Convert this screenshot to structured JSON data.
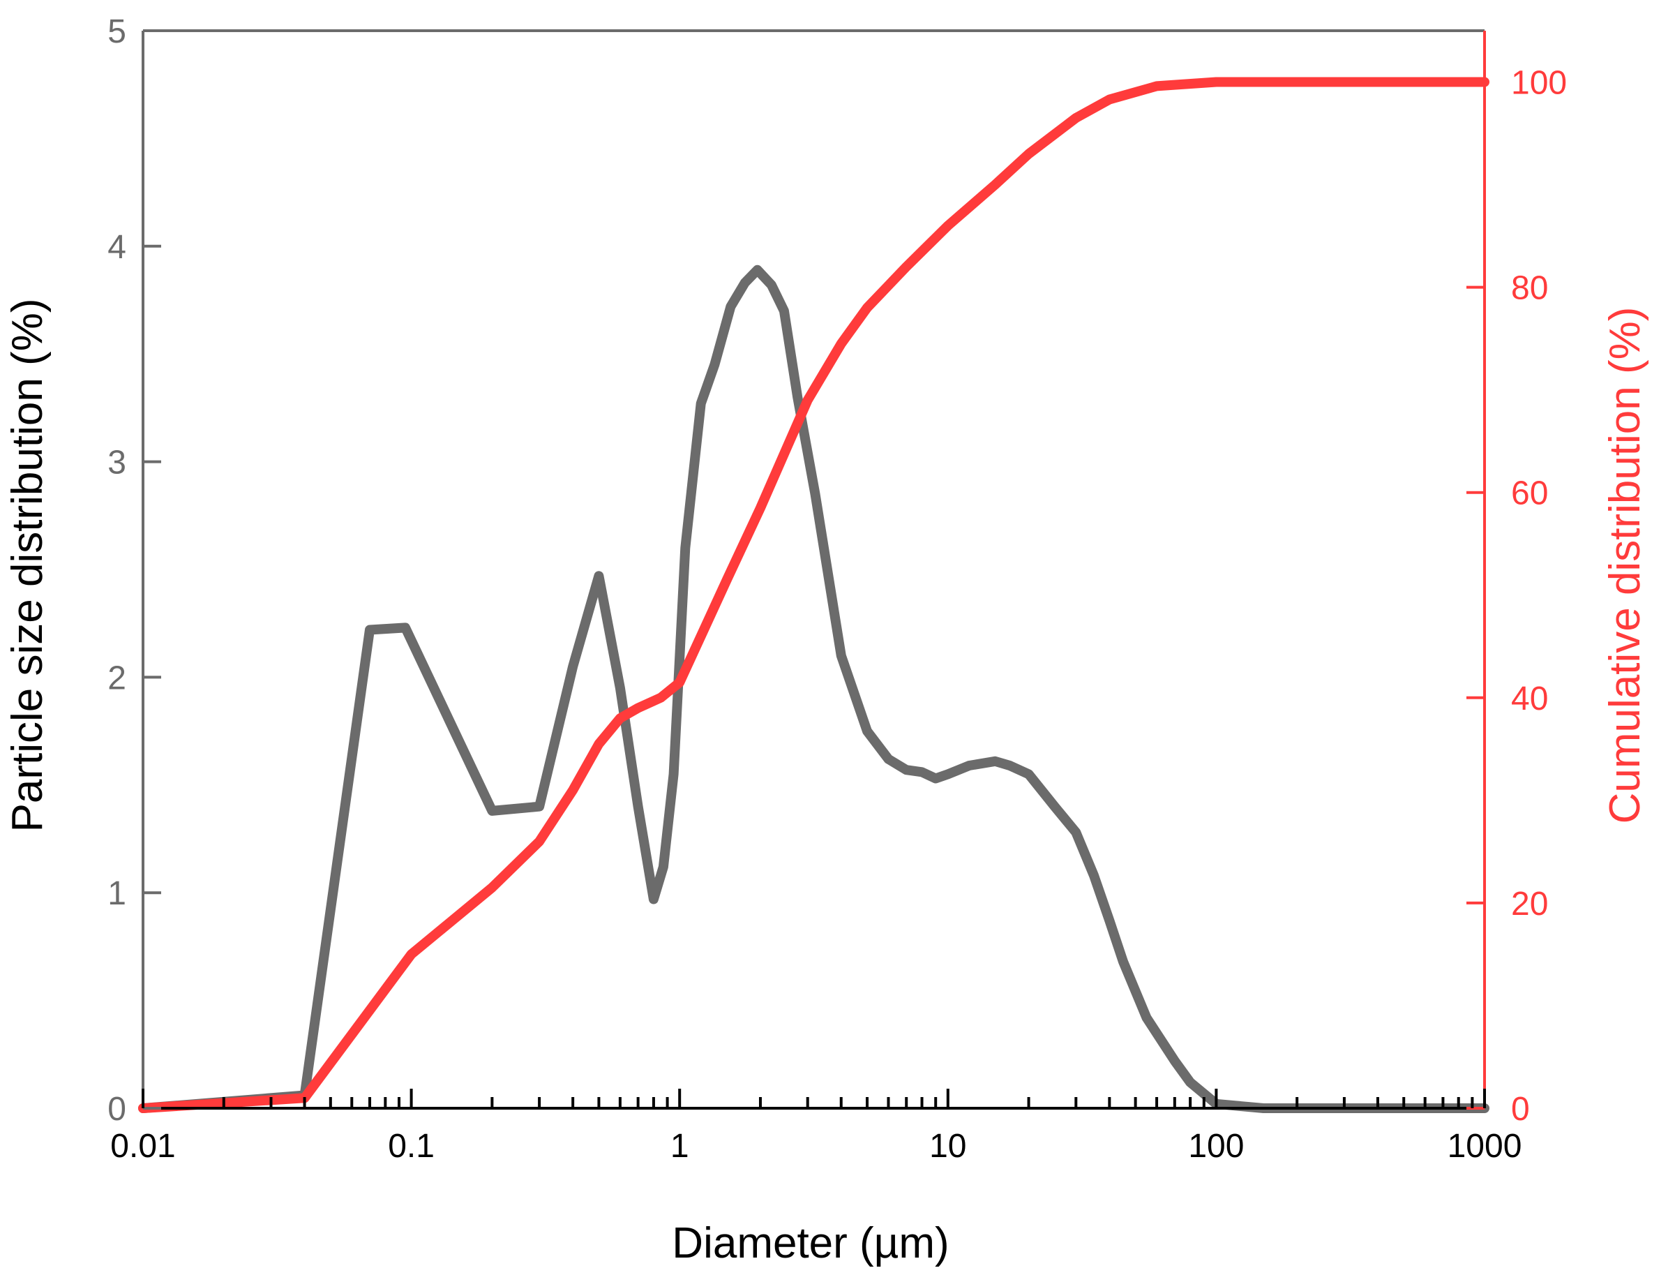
{
  "chart_data": {
    "type": "line",
    "x_scale": "log",
    "xlabel": "Diameter (µm)",
    "ylabel_left": "Particle size distribution (%)",
    "ylabel_right": "Cumulative distribution (%)",
    "xlim": [
      0.01,
      1000
    ],
    "ylim_left": [
      0,
      5
    ],
    "ylim_right": [
      0,
      105
    ],
    "x_ticks": [
      0.01,
      0.1,
      1,
      10,
      100,
      1000
    ],
    "x_tick_labels": [
      "0.01",
      "0.1",
      "1",
      "10",
      "100",
      "1000"
    ],
    "y_left_ticks": [
      0,
      1,
      2,
      3,
      4,
      5
    ],
    "y_left_tick_labels": [
      "0",
      "1",
      "2",
      "3",
      "4",
      "5"
    ],
    "y_right_ticks": [
      0,
      20,
      40,
      60,
      80,
      100
    ],
    "y_right_tick_labels": [
      "0",
      "20",
      "40",
      "60",
      "80",
      "100"
    ],
    "grid": false,
    "colors": {
      "left_axis": "#6b6b6b",
      "right_axis": "#ff3b3b",
      "x_axis": "#000000",
      "distribution_line": "#6b6b6b",
      "cumulative_line": "#ff3b3b"
    },
    "series": [
      {
        "axis": "left",
        "x": [
          0.01,
          0.04,
          0.07,
          0.095,
          0.2,
          0.3,
          0.4,
          0.5,
          0.6,
          0.7,
          0.8,
          0.87,
          0.95,
          1.05,
          1.2,
          1.35,
          1.55,
          1.75,
          1.95,
          2.2,
          2.45,
          2.75,
          3.2,
          4,
          5,
          6,
          7,
          8,
          9,
          10,
          12,
          15,
          17,
          20,
          25,
          30,
          35,
          40,
          45,
          55,
          70,
          80,
          100,
          150,
          1000
        ],
        "y": [
          0.0,
          0.06,
          2.22,
          2.23,
          1.38,
          1.4,
          2.05,
          2.47,
          1.95,
          1.4,
          0.97,
          1.12,
          1.55,
          2.6,
          3.27,
          3.45,
          3.72,
          3.83,
          3.89,
          3.82,
          3.7,
          3.3,
          2.85,
          2.1,
          1.75,
          1.62,
          1.57,
          1.56,
          1.53,
          1.55,
          1.59,
          1.61,
          1.59,
          1.55,
          1.4,
          1.28,
          1.08,
          0.87,
          0.68,
          0.42,
          0.22,
          0.12,
          0.02,
          0.0,
          0.0
        ]
      },
      {
        "axis": "right",
        "x": [
          0.01,
          0.04,
          0.1,
          0.2,
          0.3,
          0.4,
          0.5,
          0.6,
          0.7,
          0.85,
          1.0,
          1.2,
          1.5,
          2.0,
          3.0,
          4.0,
          5.0,
          7.0,
          10,
          15,
          20,
          30,
          40,
          60,
          100,
          1000
        ],
        "y": [
          0.0,
          1.0,
          15.0,
          21.5,
          26.0,
          31.0,
          35.5,
          38.0,
          39.0,
          40.0,
          41.5,
          46.0,
          51.5,
          58.5,
          69.0,
          74.5,
          78.0,
          82.0,
          86.0,
          90.0,
          93.0,
          96.5,
          98.3,
          99.6,
          100.0,
          100.0
        ]
      }
    ]
  }
}
